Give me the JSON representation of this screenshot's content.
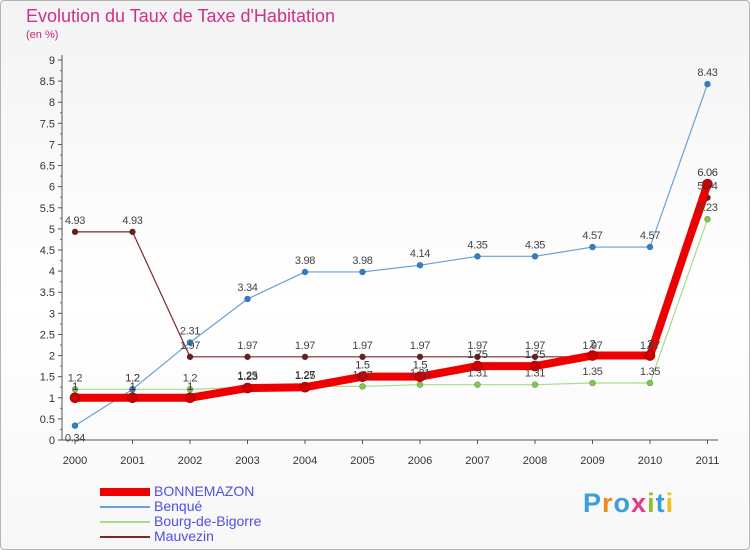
{
  "title": "Evolution du Taux de Taxe d'Habitation",
  "subtitle": "(en %)",
  "logo": "Proxiti",
  "logo_colors": [
    "#3aa0d8",
    "#f08a1c",
    "#3aa0d8",
    "#e03c8a",
    "#90c02a",
    "#3aa0d8",
    "#f0c020"
  ],
  "chart_data": {
    "type": "line",
    "title": "Evolution du Taux de Taxe d'Habitation",
    "ylabel": "(en %)",
    "xlabel": "",
    "ylim": [
      0,
      9
    ],
    "yticks": [
      "0",
      "0.5",
      "1",
      "1.5",
      "2",
      "2.5",
      "3",
      "3.5",
      "4",
      "4.5",
      "5",
      "5.5",
      "6",
      "6.5",
      "7",
      "7.5",
      "8",
      "8.5",
      "9"
    ],
    "x": [
      "2000",
      "2001",
      "2002",
      "2003",
      "2004",
      "2005",
      "2006",
      "2007",
      "2008",
      "2009",
      "2010",
      "2011"
    ],
    "series": [
      {
        "name": "BONNEMAZON",
        "color": "#ee0000",
        "values": [
          1,
          1,
          1,
          1.23,
          1.25,
          1.5,
          1.5,
          1.75,
          1.75,
          2,
          2,
          6.06
        ],
        "labels": [
          "1",
          "1",
          "1",
          "1.23",
          "1.25",
          "1.5",
          "1.5",
          "1.75",
          "1.75",
          "2",
          "2",
          "6.06"
        ]
      },
      {
        "name": "Benqué",
        "color": "#4a90d0",
        "values": [
          0.34,
          1.2,
          2.31,
          3.34,
          3.98,
          3.98,
          4.14,
          4.35,
          4.35,
          4.57,
          4.57,
          8.43
        ],
        "labels": [
          "0.34",
          "1.2",
          "2.31",
          "3.34",
          "3.98",
          "3.98",
          "4.14",
          "4.35",
          "4.35",
          "4.57",
          "4.57",
          "8.43"
        ]
      },
      {
        "name": "Bourg-de-Bigorre",
        "color": "#88d060",
        "values": [
          1.2,
          1.2,
          1.2,
          1.25,
          1.27,
          1.27,
          1.31,
          1.31,
          1.31,
          1.35,
          1.35,
          5.23
        ],
        "labels": [
          "1.2",
          "1.2",
          "1.2",
          "1.25",
          "1.27",
          "1.27",
          "1.31",
          "1.31",
          "1.31",
          "1.35",
          "1.35",
          "5.23"
        ]
      },
      {
        "name": "Mauvezin",
        "color": "#7a2a2a",
        "values": [
          4.93,
          4.93,
          1.97,
          1.97,
          1.97,
          1.97,
          1.97,
          1.97,
          1.97,
          1.97,
          1.97,
          5.74
        ],
        "labels": [
          "4.93",
          "4.93",
          "1.97",
          "1.97",
          "1.97",
          "1.97",
          "1.97",
          "1.97",
          "1.97",
          "1.97",
          "1.97",
          "5.74"
        ]
      }
    ],
    "legend": "bottom-left",
    "grid": false
  }
}
